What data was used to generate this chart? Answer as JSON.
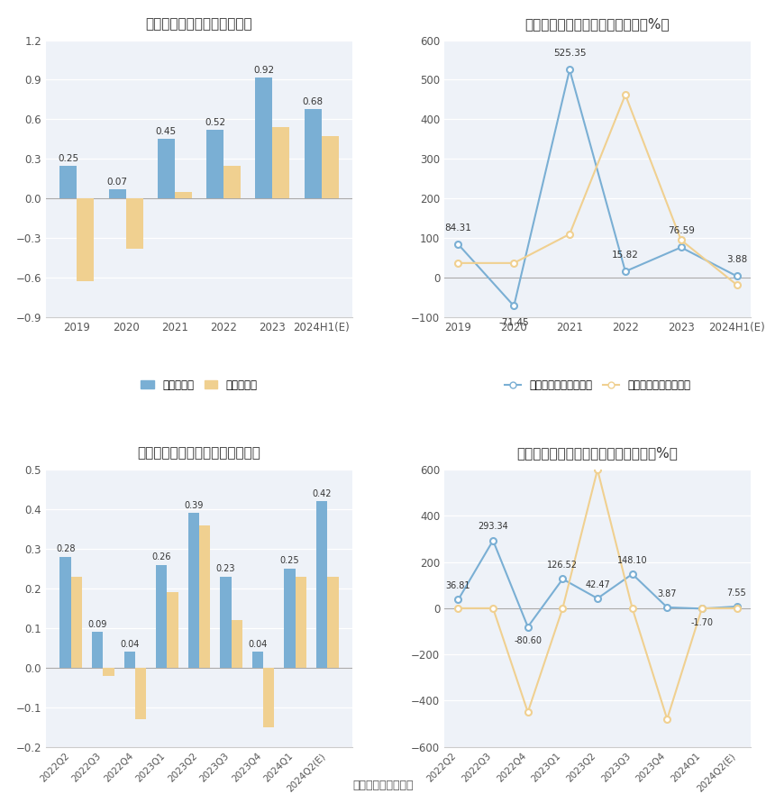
{
  "top_left": {
    "title": "历年营收、净利情况（亿元）",
    "categories": [
      "2019",
      "2020",
      "2021",
      "2022",
      "2023",
      "2024H1(E)"
    ],
    "bar1": [
      0.25,
      0.07,
      0.45,
      0.52,
      0.92,
      0.68
    ],
    "bar2": [
      -0.63,
      -0.38,
      0.05,
      0.25,
      0.54,
      0.47
    ],
    "bar1_labels": [
      "0.25",
      "0.07",
      "0.45",
      "0.52",
      "0.92",
      "0.68"
    ],
    "bar1_label": "归母净利润",
    "bar2_label": "扣非净利润",
    "bar1_color": "#7aafd4",
    "bar2_color": "#f0d090",
    "ylim": [
      -0.9,
      1.2
    ],
    "yticks": [
      -0.9,
      -0.6,
      -0.3,
      0,
      0.3,
      0.6,
      0.9,
      1.2
    ]
  },
  "top_right": {
    "title": "历年营收、净利同比增长率情况（%）",
    "categories": [
      "2019",
      "2020",
      "2021",
      "2022",
      "2023",
      "2024H1(E)"
    ],
    "line1": [
      84.31,
      -71.45,
      525.35,
      15.82,
      76.59,
      3.88
    ],
    "line2": [
      37.0,
      37.0,
      110.0,
      462.0,
      95.0,
      -18.0
    ],
    "line1_labels": [
      "84.31",
      "-71.45",
      "525.35",
      "15.82",
      "76.59",
      "3.88"
    ],
    "line1_label_offsets": [
      1,
      -1,
      1,
      1,
      1,
      1
    ],
    "line1_label": "归母净利润同比增长率",
    "line2_label": "扣非净利润同比增长率",
    "line1_color": "#7aafd4",
    "line2_color": "#f0d090",
    "ylim": [
      -100,
      600
    ],
    "yticks": [
      -100,
      0,
      100,
      200,
      300,
      400,
      500,
      600
    ]
  },
  "bottom_left": {
    "title": "营收、净利季度变动情况（亿元）",
    "categories": [
      "2022Q2",
      "2022Q3",
      "2022Q4",
      "2023Q1",
      "2023Q2",
      "2023Q3",
      "2023Q4",
      "2024Q1",
      "2024Q2(E)"
    ],
    "bar1": [
      0.28,
      0.09,
      0.04,
      0.26,
      0.39,
      0.23,
      0.04,
      0.25,
      0.42
    ],
    "bar2": [
      0.23,
      -0.02,
      -0.13,
      0.19,
      0.36,
      0.12,
      -0.15,
      0.23,
      0.23
    ],
    "bar1_labels": [
      "0.28",
      "0.09",
      "0.04",
      "0.26",
      "0.39",
      "0.23",
      "0.04",
      "0.25",
      "0.42"
    ],
    "bar1_label": "归母净利润",
    "bar2_label": "扣非净利润",
    "bar1_color": "#7aafd4",
    "bar2_color": "#f0d090",
    "ylim": [
      -0.2,
      0.5
    ],
    "yticks": [
      -0.2,
      -0.1,
      0,
      0.1,
      0.2,
      0.3,
      0.4,
      0.5
    ]
  },
  "bottom_right": {
    "title": "营收、净利同比增长率季度变动情况（%）",
    "categories": [
      "2022Q2",
      "2022Q3",
      "2022Q4",
      "2023Q1",
      "2023Q2",
      "2023Q3",
      "2023Q4",
      "2024Q1",
      "2024Q2(E)"
    ],
    "line1": [
      36.81,
      293.34,
      -80.6,
      126.52,
      42.47,
      148.1,
      3.87,
      -1.7,
      7.55
    ],
    "line2": [
      0.0,
      0.0,
      -450.0,
      0.0,
      600.0,
      0.0,
      -480.0,
      0.0,
      0.0
    ],
    "line1_labels": [
      "36.81",
      "293.34",
      "-80.60",
      "126.52",
      "42.47",
      "148.10",
      "3.87",
      "-1.70",
      "7.55"
    ],
    "line1_label_offsets": [
      1,
      1,
      -1,
      1,
      1,
      1,
      1,
      -1,
      1
    ],
    "line1_label": "归母净利润同比增长率",
    "line2_label": "扣非净利润同比增长率",
    "line1_color": "#7aafd4",
    "line2_color": "#f0d090",
    "ylim": [
      -600,
      600
    ],
    "yticks": [
      -600,
      -400,
      -200,
      0,
      200,
      400,
      600
    ]
  },
  "footer": "数据来源：恒生聚源",
  "bg_color": "#ffffff",
  "plot_bg_color": "#eef2f8",
  "grid_color": "#ffffff",
  "text_color": "#333333"
}
